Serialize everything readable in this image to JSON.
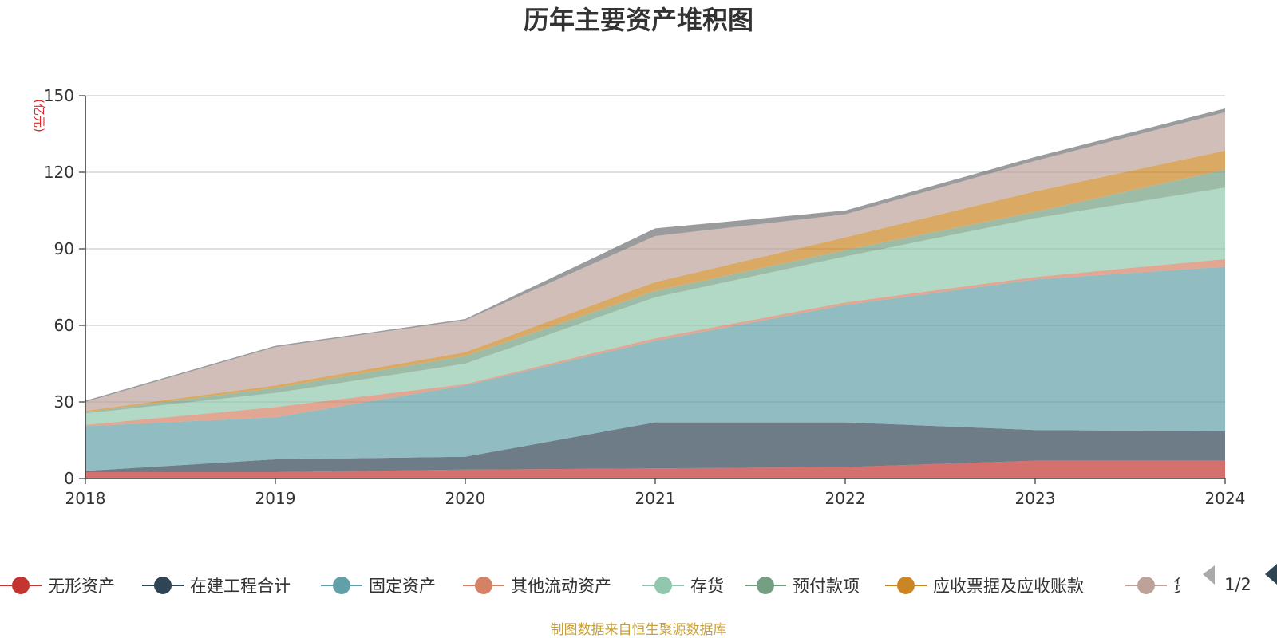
{
  "chart_data": {
    "type": "area",
    "stacked": true,
    "title": "历年主要资产堆积图",
    "unit_label": "(亿元)",
    "x": [
      "2018",
      "2019",
      "2020",
      "2021",
      "2022",
      "2023",
      "2024"
    ],
    "ylim": [
      0,
      150
    ],
    "yticks": [
      0,
      30,
      60,
      90,
      120,
      150
    ],
    "grid": true,
    "legend_position": "bottom",
    "series": [
      {
        "name": "无形资产",
        "color": "#c23531",
        "values": [
          2.5,
          2.5,
          3.5,
          4,
          4.5,
          7,
          7
        ]
      },
      {
        "name": "在建工程合计",
        "color": "#2f4554",
        "values": [
          0.5,
          5,
          5,
          18,
          17.5,
          12,
          11.5
        ]
      },
      {
        "name": "固定资产",
        "color": "#61a0a8",
        "values": [
          17.5,
          16.5,
          28,
          32,
          46,
          59,
          64.5
        ]
      },
      {
        "name": "其他流动资产",
        "color": "#d48265",
        "values": [
          0.5,
          4,
          0.5,
          1,
          1,
          1,
          3
        ]
      },
      {
        "name": "存货",
        "color": "#91c7ae",
        "values": [
          4.5,
          5.5,
          8,
          16,
          18,
          23,
          28
        ]
      },
      {
        "name": "预付款项",
        "color": "#749f83",
        "values": [
          0.5,
          2,
          3,
          2.5,
          2.5,
          2.5,
          7
        ]
      },
      {
        "name": "应收票据及应收账款",
        "color": "#ca8622",
        "values": [
          0.5,
          1,
          1.5,
          3.5,
          5,
          8,
          7.5
        ]
      },
      {
        "name": "货币资金",
        "color": "#bda29a",
        "values": [
          3.5,
          15,
          12.5,
          18,
          9,
          12,
          15
        ]
      },
      {
        "name": "",
        "color": "#6e7074",
        "values": [
          0.5,
          0.5,
          0.5,
          3,
          1.5,
          1.5,
          1.5
        ]
      }
    ]
  },
  "legend": {
    "items": [
      "无形资产",
      "在建工程合计",
      "固定资产",
      "其他流动资产",
      "存货",
      "预付款项",
      "应收票据及应收账款",
      "货"
    ],
    "page_indicator": "1/2"
  },
  "footer": {
    "source": "制图数据来自恒生聚源数据库"
  }
}
